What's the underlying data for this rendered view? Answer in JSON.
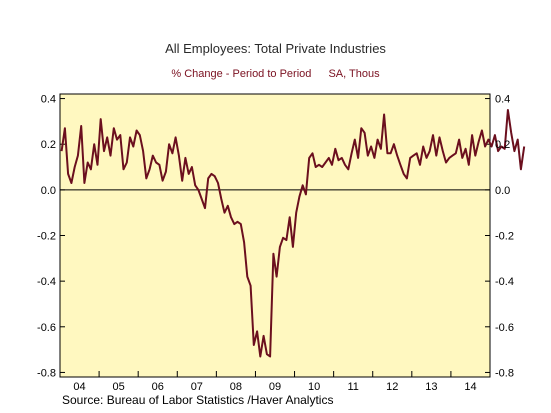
{
  "chart_data": {
    "type": "line",
    "title": "All Employees: Total Private Industries",
    "subtitle_measure": "% Change - Period to Period",
    "subtitle_units": "SA, Thous",
    "source": "Source:  Bureau of Labor Statistics /Haver Analytics",
    "x_tick_labels": [
      "04",
      "05",
      "06",
      "07",
      "08",
      "09",
      "10",
      "11",
      "12",
      "13",
      "14"
    ],
    "y_tick_values": [
      0.4,
      0.2,
      0.0,
      -0.2,
      -0.4,
      -0.6,
      -0.8
    ],
    "y_tick_labels": [
      "0.4",
      "0.2",
      "0.0",
      "-0.2",
      "-0.4",
      "-0.6",
      "-0.8"
    ],
    "ylim": [
      -0.82,
      0.42
    ],
    "xlim": [
      2004.0,
      2015.0
    ],
    "zero_line": true,
    "colors": {
      "plot_background": "#fff8c0",
      "line": "#6b0f1e"
    },
    "series": [
      {
        "x_start": 2004.0,
        "x_step_months": 1,
        "values": [
          0.17,
          0.27,
          0.07,
          0.03,
          0.1,
          0.15,
          0.28,
          0.03,
          0.12,
          0.09,
          0.2,
          0.11,
          0.31,
          0.17,
          0.23,
          0.15,
          0.27,
          0.22,
          0.24,
          0.09,
          0.12,
          0.23,
          0.19,
          0.26,
          0.24,
          0.17,
          0.05,
          0.09,
          0.15,
          0.12,
          0.11,
          0.04,
          0.08,
          0.2,
          0.16,
          0.23,
          0.15,
          0.04,
          0.14,
          0.07,
          0.1,
          0.02,
          0.0,
          -0.04,
          -0.08,
          0.05,
          0.07,
          0.06,
          0.03,
          -0.04,
          -0.1,
          -0.07,
          -0.12,
          -0.15,
          -0.14,
          -0.15,
          -0.23,
          -0.38,
          -0.42,
          -0.68,
          -0.62,
          -0.73,
          -0.64,
          -0.72,
          -0.73,
          -0.28,
          -0.38,
          -0.25,
          -0.21,
          -0.22,
          -0.12,
          -0.25,
          -0.1,
          -0.03,
          0.02,
          -0.02,
          0.14,
          0.16,
          0.1,
          0.11,
          0.1,
          0.12,
          0.14,
          0.11,
          0.18,
          0.13,
          0.14,
          0.11,
          0.09,
          0.16,
          0.22,
          0.14,
          0.27,
          0.25,
          0.15,
          0.19,
          0.14,
          0.22,
          0.18,
          0.33,
          0.16,
          0.16,
          0.2,
          0.15,
          0.11,
          0.07,
          0.05,
          0.14,
          0.15,
          0.16,
          0.11,
          0.19,
          0.14,
          0.17,
          0.24,
          0.15,
          0.23,
          0.17,
          0.12,
          0.14,
          0.15,
          0.16,
          0.22,
          0.14,
          0.18,
          0.11,
          0.24,
          0.15,
          0.21,
          0.26,
          0.19,
          0.22,
          0.19,
          0.24,
          0.17,
          0.19,
          0.18,
          0.35,
          0.25,
          0.17,
          0.22,
          0.09,
          0.19
        ]
      }
    ]
  }
}
